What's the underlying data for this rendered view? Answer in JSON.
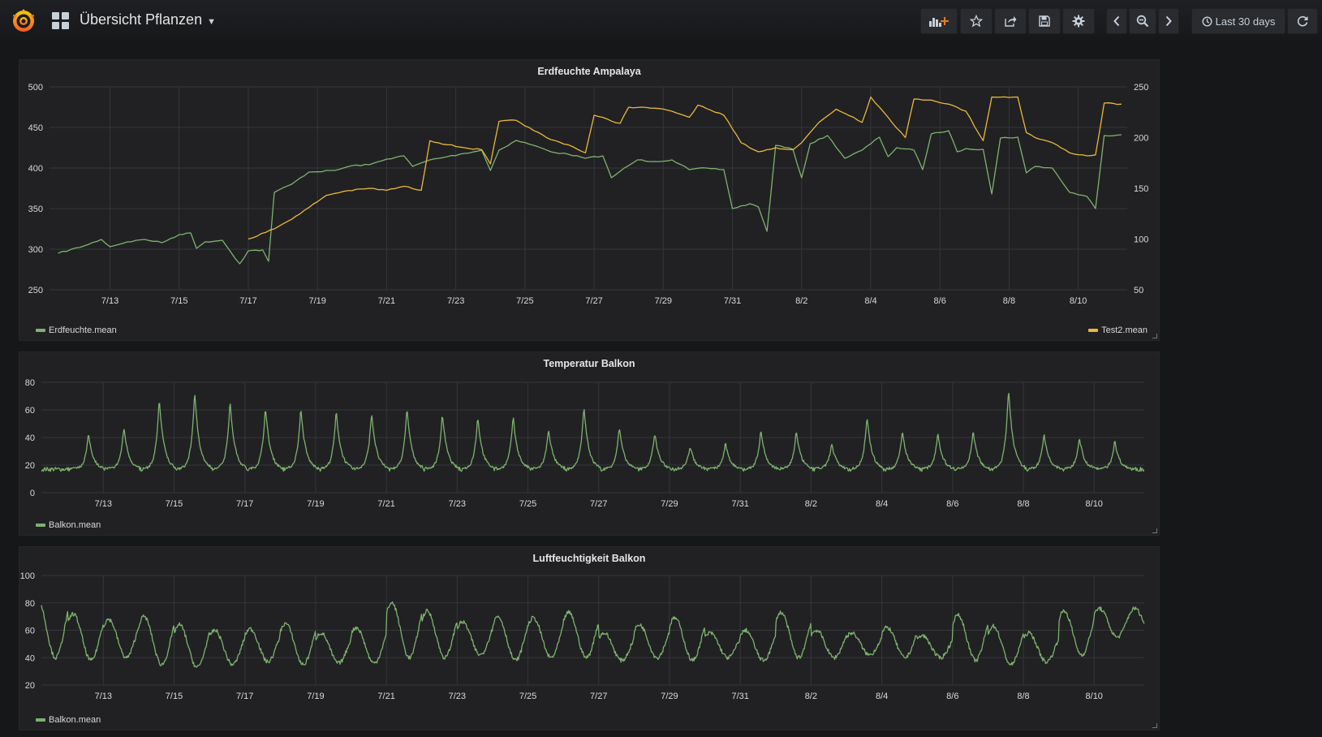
{
  "header": {
    "dashboard_title": "Übersicht Pflanzen",
    "time_range": "Last 30 days",
    "icons": [
      "grafana-logo-icon",
      "dashboard-grid-icon",
      "add-panel-icon",
      "star-icon",
      "share-icon",
      "save-icon",
      "settings-gear-icon",
      "chevron-left-icon",
      "zoom-out-icon",
      "chevron-right-icon",
      "clock-icon",
      "refresh-icon"
    ]
  },
  "colors": {
    "green": "#7eb26d",
    "yellow": "#eab839",
    "background": "#161719",
    "panel": "#212124"
  },
  "panels": [
    {
      "title": "Erdfeuchte Ampalaya",
      "legend_left": "Erdfeuchte.mean",
      "legend_right": "Test2.mean"
    },
    {
      "title": "Temperatur Balkon",
      "legend_left": "Balkon.mean"
    },
    {
      "title": "Luftfeuchtigkeit Balkon",
      "legend_left": "Balkon.mean"
    }
  ],
  "chart_data": [
    {
      "type": "line",
      "title": "Erdfeuchte Ampalaya",
      "x_tick_labels": [
        "7/13",
        "7/15",
        "7/17",
        "7/19",
        "7/21",
        "7/23",
        "7/25",
        "7/27",
        "7/29",
        "7/31",
        "8/2",
        "8/4",
        "8/6",
        "8/8",
        "8/10"
      ],
      "y_left": {
        "ylim": [
          250,
          500
        ],
        "ticks": [
          250,
          300,
          350,
          400,
          450,
          500
        ]
      },
      "y_right": {
        "ylim": [
          50,
          250
        ],
        "ticks": [
          50,
          100,
          150,
          200,
          250
        ]
      },
      "grid": true,
      "series": [
        {
          "name": "Erdfeuchte.mean",
          "axis": "left",
          "color": "#7eb26d",
          "points": [
            [
              "7/11 12:00",
              295
            ],
            [
              "7/12 06:00",
              304
            ],
            [
              "7/12 18:00",
              312
            ],
            [
              "7/13 00:00",
              303
            ],
            [
              "7/13 12:00",
              309
            ],
            [
              "7/14 00:00",
              312
            ],
            [
              "7/14 12:00",
              308
            ],
            [
              "7/15 00:00",
              318
            ],
            [
              "7/15 08:00",
              320
            ],
            [
              "7/15 12:00",
              301
            ],
            [
              "7/15 18:00",
              309
            ],
            [
              "7/16 06:00",
              311
            ],
            [
              "7/16 12:00",
              296
            ],
            [
              "7/16 18:00",
              282
            ],
            [
              "7/17 00:00",
              298
            ],
            [
              "7/17 10:00",
              299
            ],
            [
              "7/17 14:00",
              285
            ],
            [
              "7/17 18:00",
              370
            ],
            [
              "7/18 06:00",
              380
            ],
            [
              "7/18 18:00",
              395
            ],
            [
              "7/19 12:00",
              397
            ],
            [
              "7/20 00:00",
              403
            ],
            [
              "7/20 12:00",
              404
            ],
            [
              "7/21 00:00",
              411
            ],
            [
              "7/21 12:00",
              415
            ],
            [
              "7/21 18:00",
              402
            ],
            [
              "7/22 06:00",
              410
            ],
            [
              "7/22 18:00",
              414
            ],
            [
              "7/23 06:00",
              418
            ],
            [
              "7/23 18:00",
              422
            ],
            [
              "7/24 00:00",
              397
            ],
            [
              "7/24 06:00",
              422
            ],
            [
              "7/24 18:00",
              434
            ],
            [
              "7/25 06:00",
              428
            ],
            [
              "7/25 18:00",
              420
            ],
            [
              "7/26 06:00",
              417
            ],
            [
              "7/26 18:00",
              412
            ],
            [
              "7/27 06:00",
              415
            ],
            [
              "7/27 12:00",
              388
            ],
            [
              "7/27 18:00",
              396
            ],
            [
              "7/28 06:00",
              410
            ],
            [
              "7/28 18:00",
              408
            ],
            [
              "7/29 06:00",
              410
            ],
            [
              "7/29 18:00",
              398
            ],
            [
              "7/30 06:00",
              400
            ],
            [
              "7/30 18:00",
              398
            ],
            [
              "7/31 00:00",
              350
            ],
            [
              "7/31 12:00",
              356
            ],
            [
              "7/31 18:00",
              352
            ],
            [
              "8/1 00:00",
              322
            ],
            [
              "8/1 06:00",
              428
            ],
            [
              "8/1 18:00",
              423
            ],
            [
              "8/2 00:00",
              388
            ],
            [
              "8/2 06:00",
              430
            ],
            [
              "8/2 18:00",
              440
            ],
            [
              "8/3 06:00",
              412
            ],
            [
              "8/3 18:00",
              422
            ],
            [
              "8/4 06:00",
              438
            ],
            [
              "8/4 12:00",
              414
            ],
            [
              "8/4 18:00",
              425
            ],
            [
              "8/5 06:00",
              422
            ],
            [
              "8/5 12:00",
              398
            ],
            [
              "8/5 18:00",
              442
            ],
            [
              "8/6 06:00",
              446
            ],
            [
              "8/6 12:00",
              420
            ],
            [
              "8/6 18:00",
              424
            ],
            [
              "8/7 06:00",
              423
            ],
            [
              "8/7 12:00",
              368
            ],
            [
              "8/7 18:00",
              437
            ],
            [
              "8/8 06:00",
              438
            ],
            [
              "8/8 12:00",
              394
            ],
            [
              "8/8 18:00",
              402
            ],
            [
              "8/9 06:00",
              400
            ],
            [
              "8/9 18:00",
              370
            ],
            [
              "8/10 06:00",
              365
            ],
            [
              "8/10 12:00",
              350
            ],
            [
              "8/10 18:00",
              440
            ],
            [
              "8/11 06:00",
              441
            ]
          ]
        },
        {
          "name": "Test2.mean",
          "axis": "right",
          "color": "#eab839",
          "points": [
            [
              "7/17 00:00",
              100
            ],
            [
              "7/17 18:00",
              110
            ],
            [
              "7/18 12:00",
              125
            ],
            [
              "7/19 06:00",
              143
            ],
            [
              "7/19 18:00",
              147
            ],
            [
              "7/20 12:00",
              150
            ],
            [
              "7/21 00:00",
              148
            ],
            [
              "7/21 12:00",
              152
            ],
            [
              "7/22 00:00",
              148
            ],
            [
              "7/22 06:00",
              197
            ],
            [
              "7/22 18:00",
              193
            ],
            [
              "7/23 06:00",
              190
            ],
            [
              "7/23 18:00",
              188
            ],
            [
              "7/24 00:00",
              174
            ],
            [
              "7/24 06:00",
              216
            ],
            [
              "7/24 18:00",
              217
            ],
            [
              "7/25 06:00",
              207
            ],
            [
              "7/25 18:00",
              198
            ],
            [
              "7/26 06:00",
              193
            ],
            [
              "7/26 18:00",
              185
            ],
            [
              "7/27 00:00",
              222
            ],
            [
              "7/27 18:00",
              214
            ],
            [
              "7/28 00:00",
              230
            ],
            [
              "7/28 18:00",
              229
            ],
            [
              "7/29 06:00",
              226
            ],
            [
              "7/29 18:00",
              220
            ],
            [
              "7/30 00:00",
              232
            ],
            [
              "7/30 12:00",
              225
            ],
            [
              "7/30 18:00",
              222
            ],
            [
              "7/31 06:00",
              195
            ],
            [
              "7/31 18:00",
              186
            ],
            [
              "8/1 06:00",
              190
            ],
            [
              "8/1 18:00",
              188
            ],
            [
              "8/2 00:00",
              195
            ],
            [
              "8/2 12:00",
              215
            ],
            [
              "8/3 00:00",
              228
            ],
            [
              "8/3 12:00",
              220
            ],
            [
              "8/3 18:00",
              215
            ],
            [
              "8/4 00:00",
              240
            ],
            [
              "8/4 12:00",
              220
            ],
            [
              "8/5 00:00",
              200
            ],
            [
              "8/5 06:00",
              238
            ],
            [
              "8/5 18:00",
              237
            ],
            [
              "8/6 06:00",
              233
            ],
            [
              "8/6 18:00",
              226
            ],
            [
              "8/7 06:00",
              197
            ],
            [
              "8/7 12:00",
              240
            ],
            [
              "8/8 06:00",
              240
            ],
            [
              "8/8 12:00",
              205
            ],
            [
              "8/8 18:00",
              200
            ],
            [
              "8/9 06:00",
              195
            ],
            [
              "8/9 18:00",
              185
            ],
            [
              "8/10 06:00",
              182
            ],
            [
              "8/10 12:00",
              183
            ],
            [
              "8/10 18:00",
              234
            ],
            [
              "8/11 06:00",
              233
            ]
          ]
        }
      ]
    },
    {
      "type": "line",
      "title": "Temperatur Balkon",
      "x_tick_labels": [
        "7/13",
        "7/15",
        "7/17",
        "7/19",
        "7/21",
        "7/23",
        "7/25",
        "7/27",
        "7/29",
        "7/31",
        "8/2",
        "8/4",
        "8/6",
        "8/8",
        "8/10"
      ],
      "ylim": [
        0,
        80
      ],
      "y_ticks": [
        0,
        20,
        40,
        60,
        80
      ],
      "grid": true,
      "series": [
        {
          "name": "Balkon.mean",
          "color": "#7eb26d",
          "daily_min": 17,
          "daily_peaks": [
            [
              "7/12",
              43
            ],
            [
              "7/13",
              48
            ],
            [
              "7/14",
              69
            ],
            [
              "7/15",
              74
            ],
            [
              "7/16",
              67
            ],
            [
              "7/17",
              63
            ],
            [
              "7/18",
              62
            ],
            [
              "7/19",
              60
            ],
            [
              "7/20",
              59
            ],
            [
              "7/21",
              62
            ],
            [
              "7/22",
              58
            ],
            [
              "7/23",
              56
            ],
            [
              "7/24",
              56
            ],
            [
              "7/25",
              47
            ],
            [
              "7/26",
              63
            ],
            [
              "7/27",
              48
            ],
            [
              "7/28",
              44
            ],
            [
              "7/29",
              34
            ],
            [
              "7/30",
              36
            ],
            [
              "7/31",
              46
            ],
            [
              "8/1",
              45
            ],
            [
              "8/2",
              36
            ],
            [
              "8/3",
              56
            ],
            [
              "8/4",
              45
            ],
            [
              "8/5",
              44
            ],
            [
              "8/6",
              45
            ],
            [
              "8/7",
              77
            ],
            [
              "8/8",
              43
            ],
            [
              "8/9",
              41
            ],
            [
              "8/10",
              38
            ]
          ]
        }
      ]
    },
    {
      "type": "line",
      "title": "Luftfeuchtigkeit Balkon",
      "x_tick_labels": [
        "7/13",
        "7/15",
        "7/17",
        "7/19",
        "7/21",
        "7/23",
        "7/25",
        "7/27",
        "7/29",
        "7/31",
        "8/2",
        "8/4",
        "8/6",
        "8/8",
        "8/10"
      ],
      "ylim": [
        20,
        100
      ],
      "y_ticks": [
        20,
        40,
        60,
        80,
        100
      ],
      "grid": true,
      "series": [
        {
          "name": "Balkon.mean",
          "color": "#7eb26d",
          "daily_max_min": [
            [
              "7/11",
              82,
              40
            ],
            [
              "7/12",
              72,
              38
            ],
            [
              "7/13",
              68,
              40
            ],
            [
              "7/14",
              70,
              35
            ],
            [
              "7/15",
              64,
              33
            ],
            [
              "7/16",
              60,
              35
            ],
            [
              "7/17",
              61,
              37
            ],
            [
              "7/18",
              65,
              35
            ],
            [
              "7/19",
              58,
              36
            ],
            [
              "7/20",
              62,
              36
            ],
            [
              "7/21",
              80,
              40
            ],
            [
              "7/22",
              74,
              40
            ],
            [
              "7/23",
              66,
              42
            ],
            [
              "7/24",
              70,
              38
            ],
            [
              "7/25",
              69,
              40
            ],
            [
              "7/26",
              73,
              40
            ],
            [
              "7/27",
              58,
              38
            ],
            [
              "7/28",
              64,
              40
            ],
            [
              "7/29",
              69,
              38
            ],
            [
              "7/30",
              58,
              40
            ],
            [
              "7/31",
              60,
              38
            ],
            [
              "8/1",
              73,
              40
            ],
            [
              "8/2",
              60,
              40
            ],
            [
              "8/3",
              58,
              42
            ],
            [
              "8/4",
              62,
              40
            ],
            [
              "8/5",
              56,
              40
            ],
            [
              "8/6",
              71,
              38
            ],
            [
              "8/7",
              63,
              35
            ],
            [
              "8/8",
              58,
              37
            ],
            [
              "8/9",
              74,
              42
            ],
            [
              "8/10",
              76,
              55
            ]
          ]
        }
      ]
    }
  ]
}
